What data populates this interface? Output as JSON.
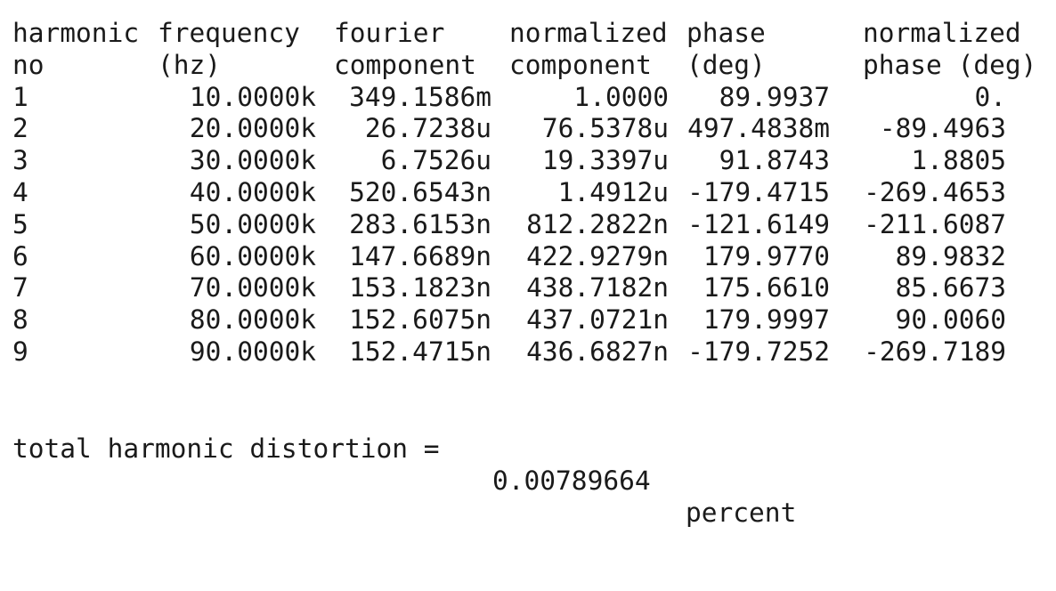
{
  "headers": {
    "row1": [
      "harmonic",
      "frequency",
      "fourier",
      "normalized",
      "phase",
      "normalized"
    ],
    "row2": [
      "no",
      "(hz)",
      "component",
      "component",
      "(deg)",
      "phase (deg)"
    ]
  },
  "rows": [
    [
      "1",
      "10.0000k",
      "349.1586m",
      "1.0000",
      "89.9937",
      "0."
    ],
    [
      "2",
      "20.0000k",
      "26.7238u",
      "76.5378u",
      "497.4838m",
      "-89.4963"
    ],
    [
      "3",
      "30.0000k",
      "6.7526u",
      "19.3397u",
      "91.8743",
      "1.8805"
    ],
    [
      "4",
      "40.0000k",
      "520.6543n",
      "1.4912u",
      "-179.4715",
      "-269.4653"
    ],
    [
      "5",
      "50.0000k",
      "283.6153n",
      "812.2822n",
      "-121.6149",
      "-211.6087"
    ],
    [
      "6",
      "60.0000k",
      "147.6689n",
      "422.9279n",
      "179.9770",
      "89.9832"
    ],
    [
      "7",
      "70.0000k",
      "153.1823n",
      "438.7182n",
      "175.6610",
      "85.6673"
    ],
    [
      "8",
      "80.0000k",
      "152.6075n",
      "437.0721n",
      "179.9997",
      "90.0060"
    ],
    [
      "9",
      "90.0000k",
      "152.4715n",
      "436.6827n",
      "-179.7252",
      "-269.7189"
    ]
  ],
  "summary": {
    "label": "total harmonic distortion =",
    "value": "0.00789664",
    "unit": "percent"
  }
}
